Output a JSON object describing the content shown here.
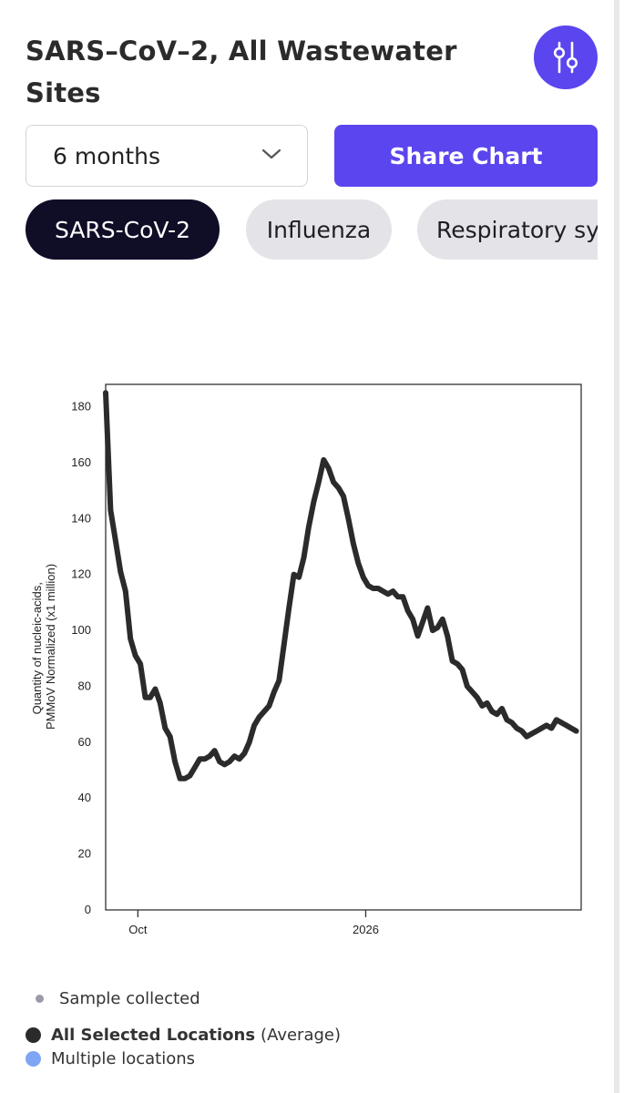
{
  "header": {
    "title": "SARS–CoV–2, All Wastewater Sites"
  },
  "controls": {
    "time_range": "6 months",
    "share_label": "Share Chart"
  },
  "pathogen_tabs": [
    {
      "label": "SARS-CoV-2",
      "active": true
    },
    {
      "label": "Influenza",
      "active": false
    },
    {
      "label": "Respiratory syncytial virus",
      "active": false
    }
  ],
  "icons": {
    "settings": "sliders-icon",
    "dropdown": "chevron-down-icon"
  },
  "colors": {
    "accent": "#5b45ee",
    "active_chip": "#100d27",
    "inactive_chip": "#e4e4e8",
    "series_line": "#2b2b2b",
    "multiple_locations": "#7ea6f5",
    "sample_dot": "#9a9aa8"
  },
  "chart_data": {
    "type": "line",
    "title": "",
    "xlabel": "",
    "ylabel": "Quantity of nucleic-acids, PMMoV Normalized (x1 million)",
    "ylabel_lines": [
      "Quantity of nucleic-acids,",
      "PMMoV Normalized (x1 million)"
    ],
    "ylim": [
      0,
      188
    ],
    "y_ticks": [
      0,
      20,
      40,
      60,
      80,
      100,
      120,
      140,
      160,
      180
    ],
    "xlim": [
      "2025-09-18",
      "2026-03-29"
    ],
    "x_ticks": [
      {
        "label": "Oct",
        "date": "2025-10-01"
      },
      {
        "label": "2026",
        "date": "2026-01-01"
      }
    ],
    "grid": false,
    "series": [
      {
        "name": "All Selected Locations",
        "x": [
          "2025-09-18",
          "2025-09-20",
          "2025-09-22",
          "2025-09-24",
          "2025-09-26",
          "2025-09-28",
          "2025-09-30",
          "2025-10-02",
          "2025-10-04",
          "2025-10-06",
          "2025-10-08",
          "2025-10-10",
          "2025-10-12",
          "2025-10-14",
          "2025-10-16",
          "2025-10-18",
          "2025-10-20",
          "2025-10-22",
          "2025-10-24",
          "2025-10-26",
          "2025-10-28",
          "2025-10-30",
          "2025-11-01",
          "2025-11-03",
          "2025-11-05",
          "2025-11-07",
          "2025-11-09",
          "2025-11-11",
          "2025-11-13",
          "2025-11-15",
          "2025-11-17",
          "2025-11-19",
          "2025-11-21",
          "2025-11-23",
          "2025-11-25",
          "2025-11-27",
          "2025-11-29",
          "2025-12-01",
          "2025-12-03",
          "2025-12-05",
          "2025-12-07",
          "2025-12-09",
          "2025-12-11",
          "2025-12-13",
          "2025-12-15",
          "2025-12-17",
          "2025-12-19",
          "2025-12-21",
          "2025-12-23",
          "2025-12-25",
          "2025-12-27",
          "2025-12-29",
          "2025-12-31",
          "2026-01-02",
          "2026-01-04",
          "2026-01-06",
          "2026-01-08",
          "2026-01-10",
          "2026-01-12",
          "2026-01-14",
          "2026-01-16",
          "2026-01-18",
          "2026-01-20",
          "2026-01-22",
          "2026-01-24",
          "2026-01-26",
          "2026-01-28",
          "2026-01-30",
          "2026-02-01",
          "2026-02-03",
          "2026-02-05",
          "2026-02-07",
          "2026-02-09",
          "2026-02-11",
          "2026-02-13",
          "2026-02-15",
          "2026-02-17",
          "2026-02-19",
          "2026-02-21",
          "2026-02-23",
          "2026-02-25",
          "2026-02-27",
          "2026-03-01",
          "2026-03-03",
          "2026-03-05",
          "2026-03-07",
          "2026-03-09",
          "2026-03-11",
          "2026-03-13",
          "2026-03-15",
          "2026-03-17",
          "2026-03-19",
          "2026-03-21",
          "2026-03-23",
          "2026-03-25",
          "2026-03-27"
        ],
        "y": [
          185,
          143,
          132,
          121,
          114,
          97,
          91,
          88,
          76,
          76,
          79,
          74,
          65,
          62,
          53,
          47,
          47,
          48,
          51,
          54,
          54,
          55,
          57,
          53,
          52,
          53,
          55,
          54,
          56,
          60,
          66,
          69,
          71,
          73,
          78,
          82,
          95,
          108,
          120,
          119,
          126,
          137,
          146,
          153,
          161,
          158,
          153,
          151,
          148,
          140,
          131,
          124,
          119,
          116,
          115,
          115,
          114,
          113,
          114,
          112,
          112,
          107,
          104,
          98,
          103,
          108,
          100,
          101,
          104,
          98,
          89,
          88,
          86,
          80,
          78,
          76,
          73,
          74,
          71,
          70,
          72,
          68,
          67,
          65,
          64,
          62,
          63,
          64,
          65,
          66,
          65,
          68,
          67,
          66,
          65,
          64
        ]
      }
    ],
    "legend": [
      {
        "label": "Sample collected",
        "marker": "small-dot",
        "color": "#9a9aa8"
      },
      {
        "label": "All Selected Locations",
        "suffix": "(Average)",
        "marker": "dot",
        "color": "#2b2b2b"
      },
      {
        "label": "Multiple locations",
        "marker": "dot",
        "color": "#7ea6f5"
      }
    ]
  }
}
